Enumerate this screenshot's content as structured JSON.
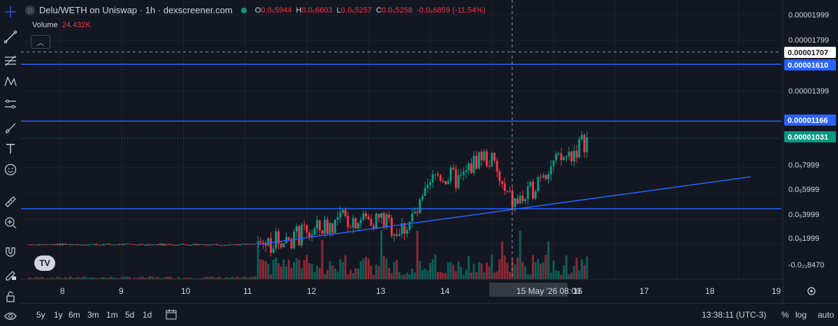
{
  "legend": {
    "symbol_badge": "D",
    "title": "Delu/WETH on Uniswap · 1h · dexscreener.com",
    "ohlc": [
      {
        "k": "O",
        "v": "0.0₅5944"
      },
      {
        "k": "H",
        "v": "0.0₅6603"
      },
      {
        "k": "L",
        "v": "0.0₅5257"
      },
      {
        "k": "C",
        "v": "0.0₅5258"
      },
      {
        "k": "",
        "v": "-0.0₆6859 (-11.54%)"
      }
    ]
  },
  "volume": {
    "label": "Volume",
    "value": "24.432K"
  },
  "collapse_icon": "chevron-up-icon",
  "logo_text": "TV",
  "price_axis": {
    "ticks": [
      "0.00001999",
      "0.00001799",
      "0.00001399",
      "0.0₅7999",
      "0.0₅5999",
      "0.0₅3999",
      "0.0₅1999",
      "-0.0₂₁8470"
    ],
    "labels": [
      {
        "text": "0.00001707",
        "bg": "#ffffff",
        "fg": "#131722"
      },
      {
        "text": "0.00001610",
        "bg": "#2962ff",
        "fg": "#ffffff"
      },
      {
        "text": "0.00001166",
        "bg": "#2962ff",
        "fg": "#ffffff"
      },
      {
        "text": "0.00001031",
        "bg": "#089981",
        "fg": "#ffffff"
      }
    ]
  },
  "time_axis": {
    "ticks": [
      "8",
      "9",
      "10",
      "11",
      "12",
      "13",
      "14",
      "15 May '26   08:00",
      "16",
      "17",
      "18",
      "19"
    ]
  },
  "bottom_bar": {
    "timeframes": [
      "5y",
      "1y",
      "6m",
      "3m",
      "1m",
      "5d",
      "1d"
    ],
    "clock": "13:38:11 (UTC-3)",
    "percent": "%",
    "log": "log",
    "auto": "auto"
  },
  "tools": [
    "crosshair-icon",
    "trend-line-icon",
    "fib-icon",
    "pattern-icon",
    "measure-icon",
    "brush-icon",
    "text-icon",
    "emoji-icon",
    "ruler-icon",
    "zoom-icon",
    "magnet-icon",
    "lock-draw-icon",
    "lock-icon",
    "eye-icon"
  ],
  "colors": {
    "up": "#089981",
    "down": "#f23645",
    "line": "#2962ff",
    "bg": "#131722",
    "grid": "#1e222d"
  },
  "chart_data": {
    "type": "candlestick",
    "pair": "Delu/WETH",
    "interval": "1h",
    "ylim": [
      -5e-07,
      2.05e-05
    ],
    "x_days": [
      8,
      9,
      10,
      11,
      12,
      13,
      14,
      15,
      16,
      17,
      18,
      19
    ],
    "last_price": 1.031e-05,
    "horizontal_lines": [
      1.61e-05,
      1.166e-05,
      4.8e-06
    ],
    "crosshair_price": 1.707e-05,
    "crosshair_time": "15 May '26 08:00",
    "trend_line": {
      "from": [
        11.2,
        2e-06
      ],
      "to": [
        19.2,
        7.3e-06
      ]
    },
    "close_path": [
      [
        7.5,
        2e-06
      ],
      [
        11.2,
        2e-06
      ],
      [
        12.0,
        2.8e-06
      ],
      [
        12.6,
        4e-06
      ],
      [
        13.2,
        4e-06
      ],
      [
        13.5,
        3e-06
      ],
      [
        13.8,
        4.5e-06
      ],
      [
        14.1,
        7.5e-06
      ],
      [
        14.5,
        7e-06
      ],
      [
        14.8,
        9e-06
      ],
      [
        15.0,
        8.5e-06
      ],
      [
        15.2,
        6e-06
      ],
      [
        15.35,
        5.2e-06
      ],
      [
        15.6,
        5.8e-06
      ],
      [
        15.8,
        7.8e-06
      ],
      [
        16.1,
        8.5e-06
      ],
      [
        16.3,
        9.2e-06
      ],
      [
        16.55,
        1.03e-05
      ]
    ]
  }
}
